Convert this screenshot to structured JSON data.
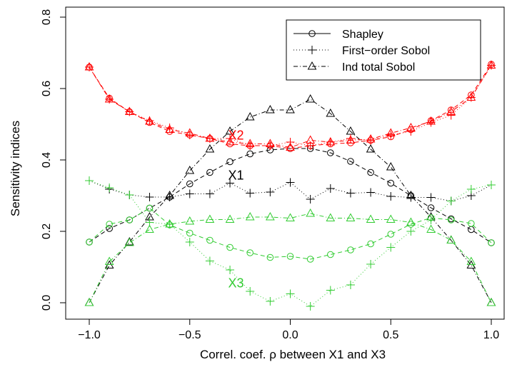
{
  "chart_data": {
    "type": "line",
    "title": "",
    "xlabel": "Correl. coef. ρ between X1 and X3",
    "ylabel": "Sensitivity indices",
    "xlim": [
      -1.05,
      1.05
    ],
    "ylim": [
      -0.02,
      0.8
    ],
    "xticks": [
      -1.0,
      -0.5,
      0.0,
      0.5,
      1.0
    ],
    "xtick_labels": [
      "−1.0",
      "−0.5",
      "0.0",
      "0.5",
      "1.0"
    ],
    "yticks": [
      0.0,
      0.2,
      0.4,
      0.6,
      0.8
    ],
    "ytick_labels": [
      "0.0",
      "0.2",
      "0.4",
      "0.6",
      "0.8"
    ],
    "grid": false,
    "legend_position": "top-right",
    "legend": [
      {
        "label": "Shapley",
        "marker": "circle",
        "line": "solid"
      },
      {
        "label": "First−order Sobol",
        "marker": "plus",
        "line": "dotted"
      },
      {
        "label": "Ind total Sobol",
        "marker": "triangle",
        "line": "dashed"
      }
    ],
    "x": [
      -1.0,
      -0.9,
      -0.8,
      -0.7,
      -0.6,
      -0.5,
      -0.4,
      -0.3,
      -0.2,
      -0.1,
      0.0,
      0.1,
      0.2,
      0.3,
      0.4,
      0.5,
      0.6,
      0.7,
      0.8,
      0.9,
      1.0
    ],
    "series": [
      {
        "variable": "X1",
        "index": "Shapley",
        "color": "#000000",
        "marker": "circle",
        "dash": "6,4",
        "values": [
          0.17,
          0.208,
          0.232,
          0.265,
          0.296,
          0.333,
          0.365,
          0.395,
          0.417,
          0.428,
          0.432,
          0.432,
          0.42,
          0.396,
          0.365,
          0.335,
          0.3,
          0.266,
          0.235,
          0.205,
          0.168
        ]
      },
      {
        "variable": "X1",
        "index": "First-order Sobol",
        "color": "#000000",
        "marker": "plus",
        "dash": "1,3",
        "values": [
          0.342,
          0.318,
          0.302,
          0.296,
          0.296,
          0.305,
          0.305,
          0.335,
          0.307,
          0.31,
          0.337,
          0.29,
          0.32,
          0.307,
          0.309,
          0.298,
          0.295,
          0.295,
          0.285,
          0.3,
          0.33
        ]
      },
      {
        "variable": "X1",
        "index": "Ind total Sobol",
        "color": "#000000",
        "marker": "triangle",
        "dash": "6,3,1,3",
        "values": [
          0.0,
          0.105,
          0.17,
          0.24,
          0.3,
          0.37,
          0.43,
          0.48,
          0.52,
          0.54,
          0.54,
          0.57,
          0.53,
          0.48,
          0.43,
          0.38,
          0.3,
          0.24,
          0.175,
          0.105,
          0.0
        ]
      },
      {
        "variable": "X2",
        "index": "Shapley",
        "color": "#ff0000",
        "marker": "circle",
        "dash": "6,4",
        "values": [
          0.66,
          0.573,
          0.535,
          0.505,
          0.48,
          0.47,
          0.46,
          0.445,
          0.44,
          0.44,
          0.432,
          0.44,
          0.445,
          0.448,
          0.455,
          0.465,
          0.485,
          0.51,
          0.54,
          0.582,
          0.668
        ]
      },
      {
        "variable": "X2",
        "index": "First-order Sobol",
        "color": "#ff0000",
        "marker": "plus",
        "dash": "1,3",
        "values": [
          0.66,
          0.57,
          0.535,
          0.51,
          0.49,
          0.47,
          0.46,
          0.46,
          0.44,
          0.44,
          0.45,
          0.44,
          0.45,
          0.46,
          0.455,
          0.47,
          0.48,
          0.505,
          0.525,
          0.575,
          0.665
        ]
      },
      {
        "variable": "X2",
        "index": "Ind total Sobol",
        "color": "#ff0000",
        "marker": "triangle",
        "dash": "6,3,1,3",
        "values": [
          0.66,
          0.57,
          0.535,
          0.508,
          0.485,
          0.475,
          0.46,
          0.45,
          0.445,
          0.445,
          0.435,
          0.455,
          0.45,
          0.455,
          0.458,
          0.475,
          0.49,
          0.508,
          0.535,
          0.575,
          0.665
        ]
      },
      {
        "variable": "X3",
        "index": "Shapley",
        "color": "#33cc33",
        "marker": "circle",
        "dash": "6,4",
        "values": [
          0.17,
          0.22,
          0.232,
          0.265,
          0.218,
          0.195,
          0.175,
          0.155,
          0.14,
          0.127,
          0.13,
          0.122,
          0.135,
          0.148,
          0.165,
          0.192,
          0.22,
          0.238,
          0.232,
          0.222,
          0.168
        ]
      },
      {
        "variable": "X3",
        "index": "First-order Sobol",
        "color": "#33cc33",
        "marker": "plus",
        "dash": "1,3",
        "values": [
          0.342,
          0.322,
          0.302,
          0.225,
          0.22,
          0.17,
          0.117,
          0.092,
          0.032,
          0.004,
          0.025,
          -0.01,
          0.035,
          0.05,
          0.108,
          0.155,
          0.2,
          0.232,
          0.285,
          0.318,
          0.33
        ]
      },
      {
        "variable": "X3",
        "index": "Ind total Sobol",
        "color": "#33cc33",
        "marker": "triangle",
        "dash": "6,3,1,3",
        "values": [
          0.0,
          0.115,
          0.168,
          0.205,
          0.22,
          0.228,
          0.233,
          0.233,
          0.24,
          0.24,
          0.237,
          0.25,
          0.237,
          0.237,
          0.233,
          0.233,
          0.225,
          0.205,
          0.175,
          0.115,
          0.0
        ]
      }
    ],
    "annotations": [
      {
        "text": "X2",
        "x": -0.27,
        "y": 0.467,
        "color": "#ff0000"
      },
      {
        "text": "X1",
        "x": -0.27,
        "y": 0.355,
        "color": "#000000"
      },
      {
        "text": "X3",
        "x": -0.27,
        "y": 0.053,
        "color": "#33cc33"
      }
    ]
  }
}
